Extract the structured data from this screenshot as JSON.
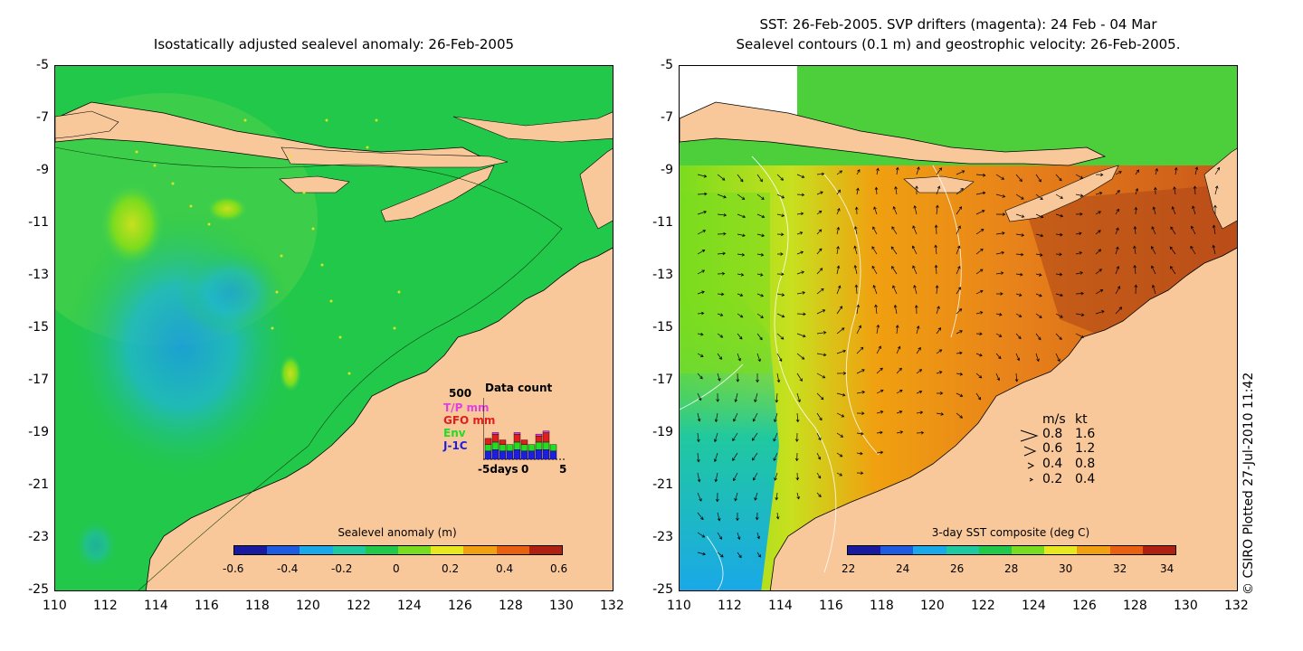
{
  "left_panel": {
    "title": "Isostatically adjusted sealevel anomaly: 26-Feb-2005",
    "colorbar": {
      "title": "Sealevel anomaly (m)",
      "ticks": [
        "-0.6",
        "-0.4",
        "-0.2",
        "0",
        "0.2",
        "0.4",
        "0.6"
      ],
      "colors": [
        "#1a1aa0",
        "#1e5be0",
        "#1aa8e8",
        "#20c8a0",
        "#22c84a",
        "#7adc1e",
        "#e8e81e",
        "#f0a010",
        "#e86010",
        "#b02010"
      ]
    },
    "data_count": {
      "title": "Data count",
      "max_label": "500",
      "series": [
        {
          "name": "T/P mm",
          "color": "#e040e0"
        },
        {
          "name": "GFO mm",
          "color": "#e01e1e"
        },
        {
          "name": "Env",
          "color": "#22dd22"
        },
        {
          "name": "J-1C",
          "color": "#1e1ee0"
        }
      ],
      "x_ticks": [
        "-5days",
        "0",
        "5"
      ],
      "stacks": [
        [
          0.3,
          0.2,
          0.2,
          0.0
        ],
        [
          0.35,
          0.35,
          0.25,
          0.1
        ],
        [
          0.3,
          0.25,
          0.15,
          0.0
        ],
        [
          0.3,
          0.2,
          0.0,
          0.0
        ],
        [
          0.35,
          0.35,
          0.25,
          0.1
        ],
        [
          0.3,
          0.25,
          0.15,
          0.0
        ],
        [
          0.3,
          0.2,
          0.0,
          0.0
        ],
        [
          0.35,
          0.3,
          0.2,
          0.1
        ],
        [
          0.35,
          0.35,
          0.3,
          0.1
        ],
        [
          0.3,
          0.1,
          0.0,
          0.0
        ]
      ]
    }
  },
  "right_panel": {
    "title_line1": "SST: 26-Feb-2005. SVP drifters (magenta): 24 Feb - 04 Mar",
    "title_line2": "Sealevel contours (0.1 m) and geostrophic velocity: 26-Feb-2005.",
    "colorbar": {
      "title": "3-day SST composite (deg C)",
      "ticks": [
        "22",
        "24",
        "26",
        "28",
        "30",
        "32",
        "34"
      ],
      "colors": [
        "#1a1aa0",
        "#1e5be0",
        "#1aa8e8",
        "#20c8a0",
        "#22c84a",
        "#7adc1e",
        "#e8e81e",
        "#f0a010",
        "#e86010",
        "#b02010"
      ]
    },
    "velocity_legend": {
      "header_ms": "m/s",
      "header_kt": "kt",
      "rows": [
        {
          "ms": "0.8",
          "kt": "1.6"
        },
        {
          "ms": "0.6",
          "kt": "1.2"
        },
        {
          "ms": "0.4",
          "kt": "0.8"
        },
        {
          "ms": "0.2",
          "kt": "0.4"
        }
      ]
    }
  },
  "axes": {
    "x_ticks": [
      "110",
      "112",
      "114",
      "116",
      "118",
      "120",
      "122",
      "124",
      "126",
      "128",
      "130",
      "132"
    ],
    "y_ticks": [
      "-5",
      "-7",
      "-9",
      "-11",
      "-13",
      "-15",
      "-17",
      "-19",
      "-21",
      "-23",
      "-25"
    ],
    "xlim": [
      110,
      132
    ],
    "ylim": [
      -25,
      -5
    ]
  },
  "credit": "© CSIRO Plotted 27-Jul-2010 11:42",
  "colors": {
    "land": "#f8c89a",
    "sea_green": "#22c84a",
    "sea_light": "#45d250",
    "sea_low": "#1aa8e8",
    "sst_orange": "#e88a1a",
    "sst_dark": "#c8561a"
  }
}
